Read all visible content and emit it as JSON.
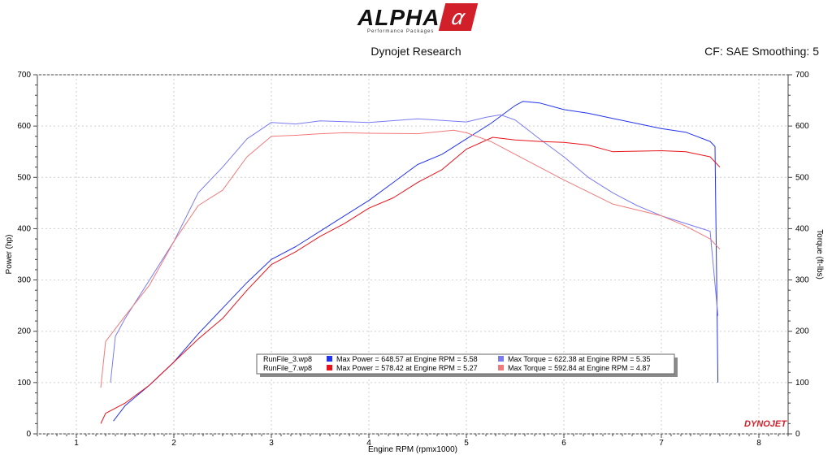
{
  "header": {
    "logo_text": "ALPHA",
    "logo_subtext": "Performance Packages",
    "title": "Dynojet Research",
    "right_text": "CF: SAE Smoothing: 5"
  },
  "watermark": "DYNOJET",
  "chart_data": {
    "type": "line",
    "xlabel": "Engine RPM (rpmx1000)",
    "ylabel": "Power (hp)",
    "y2label": "Torque (ft-lbs)",
    "xlim": [
      0.6,
      8.3
    ],
    "ylim": [
      0,
      700
    ],
    "y2lim": [
      0,
      700
    ],
    "xticks": [
      1,
      2,
      3,
      4,
      5,
      6,
      7,
      8
    ],
    "yticks": [
      0,
      100,
      200,
      300,
      400,
      500,
      600,
      700
    ],
    "grid": true,
    "series": [
      {
        "name": "RunFile_3.wp8 Power",
        "color": "#2233ee",
        "x": [
          1.38,
          1.5,
          1.75,
          2.0,
          2.25,
          2.5,
          2.75,
          3.0,
          3.25,
          3.5,
          3.75,
          4.0,
          4.25,
          4.5,
          4.75,
          5.0,
          5.25,
          5.5,
          5.58,
          5.75,
          6.0,
          6.25,
          6.5,
          6.75,
          7.0,
          7.25,
          7.5,
          7.55,
          7.58
        ],
        "y": [
          25,
          55,
          95,
          140,
          195,
          245,
          295,
          340,
          365,
          395,
          425,
          455,
          490,
          525,
          545,
          575,
          605,
          640,
          648,
          645,
          632,
          625,
          615,
          605,
          595,
          588,
          570,
          560,
          100
        ]
      },
      {
        "name": "RunFile_3.wp8 Torque",
        "color": "#7a7af2",
        "x": [
          1.35,
          1.4,
          1.5,
          1.75,
          2.0,
          2.25,
          2.5,
          2.75,
          3.0,
          3.25,
          3.5,
          4.0,
          4.5,
          5.0,
          5.2,
          5.35,
          5.5,
          5.75,
          6.0,
          6.25,
          6.5,
          6.75,
          7.0,
          7.25,
          7.5,
          7.58
        ],
        "y": [
          100,
          190,
          225,
          300,
          375,
          470,
          520,
          575,
          607,
          604,
          610,
          607,
          614,
          608,
          617,
          622,
          612,
          575,
          540,
          500,
          470,
          445,
          425,
          410,
          395,
          230
        ]
      },
      {
        "name": "RunFile_7.wp8 Power",
        "color": "#e8121a",
        "x": [
          1.25,
          1.3,
          1.5,
          1.75,
          2.0,
          2.25,
          2.5,
          2.75,
          3.0,
          3.25,
          3.5,
          3.75,
          4.0,
          4.25,
          4.5,
          4.75,
          5.0,
          5.27,
          5.5,
          5.75,
          6.0,
          6.25,
          6.5,
          7.0,
          7.25,
          7.5,
          7.6
        ],
        "y": [
          20,
          40,
          60,
          95,
          140,
          185,
          225,
          280,
          330,
          355,
          385,
          410,
          440,
          460,
          490,
          515,
          555,
          578,
          573,
          570,
          568,
          563,
          550,
          552,
          550,
          540,
          520
        ]
      },
      {
        "name": "RunFile_7.wp8 Torque",
        "color": "#f07a7a",
        "x": [
          1.25,
          1.3,
          1.5,
          1.75,
          2.0,
          2.25,
          2.5,
          2.75,
          3.0,
          3.25,
          3.5,
          3.75,
          4.0,
          4.5,
          4.87,
          5.0,
          5.25,
          5.5,
          5.75,
          6.0,
          6.5,
          7.0,
          7.25,
          7.5,
          7.6
        ],
        "y": [
          90,
          180,
          230,
          290,
          375,
          445,
          475,
          540,
          580,
          582,
          585,
          587,
          586,
          585,
          592,
          587,
          570,
          545,
          520,
          495,
          448,
          425,
          405,
          380,
          360
        ]
      }
    ],
    "legend": {
      "placement": "bottom-center",
      "rows": [
        {
          "file": "RunFile_3.wp8",
          "power_color": "#2233ee",
          "torque_color": "#7a7af2",
          "max_power": "Max Power = 648.57 at Engine RPM = 5.58",
          "max_torque": "Max Torque = 622.38 at Engine RPM = 5.35"
        },
        {
          "file": "RunFile_7.wp8",
          "power_color": "#e8121a",
          "torque_color": "#f07a7a",
          "max_power": "Max Power = 578.42 at Engine RPM = 5.27",
          "max_torque": "Max Torque = 592.84 at Engine RPM = 4.87"
        }
      ]
    }
  }
}
